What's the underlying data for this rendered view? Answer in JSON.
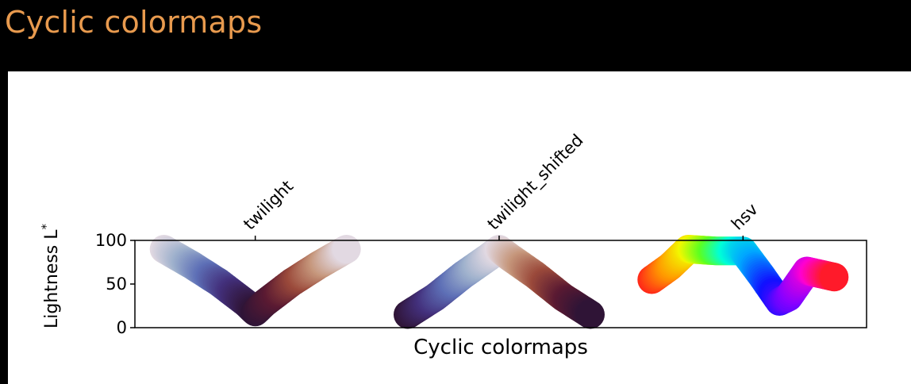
{
  "page": {
    "title": "Cyclic colormaps",
    "title_color": "#e89a4e",
    "background": "#000000"
  },
  "chart_data": {
    "type": "scatter",
    "xlabel": "Cyclic colormaps",
    "ylabel": "Lightness L",
    "ylabel_superscript": "*",
    "ylim": [
      0,
      100
    ],
    "yticks": [
      0,
      50,
      100
    ],
    "ytick_labels": [
      "0",
      "50",
      "100"
    ],
    "categories": [
      "twilight",
      "twilight_shifted",
      "hsv"
    ],
    "grid": false,
    "series": [
      {
        "name": "twilight",
        "points": [
          [
            0.0,
            90
          ],
          [
            0.15,
            72
          ],
          [
            0.3,
            52
          ],
          [
            0.45,
            28
          ],
          [
            0.5,
            18
          ],
          [
            0.55,
            28
          ],
          [
            0.7,
            52
          ],
          [
            0.85,
            72
          ],
          [
            1.0,
            90
          ]
        ],
        "colors": [
          "#e2d9e2",
          "#9db0cc",
          "#5d6fb6",
          "#43307c",
          "#2f1436",
          "#5a1a32",
          "#9b4a3b",
          "#c6977c",
          "#e2d9e2"
        ]
      },
      {
        "name": "twilight_shifted",
        "points": [
          [
            0.0,
            15
          ],
          [
            0.15,
            35
          ],
          [
            0.3,
            60
          ],
          [
            0.45,
            82
          ],
          [
            0.5,
            90
          ],
          [
            0.55,
            82
          ],
          [
            0.7,
            60
          ],
          [
            0.85,
            35
          ],
          [
            1.0,
            15
          ]
        ],
        "colors": [
          "#2f1436",
          "#43307c",
          "#5d6fb6",
          "#9db0cc",
          "#e2d9e2",
          "#c6977c",
          "#9b4a3b",
          "#5a1a32",
          "#2f1436"
        ]
      },
      {
        "name": "hsv",
        "points": [
          [
            0.0,
            55
          ],
          [
            0.1,
            70
          ],
          [
            0.2,
            90
          ],
          [
            0.35,
            88
          ],
          [
            0.5,
            88
          ],
          [
            0.6,
            60
          ],
          [
            0.7,
            30
          ],
          [
            0.75,
            35
          ],
          [
            0.85,
            65
          ],
          [
            1.0,
            58
          ]
        ],
        "colors": [
          "#ff2a18",
          "#ff9a00",
          "#f2f800",
          "#5cff20",
          "#00ffd8",
          "#00a8ff",
          "#1010ff",
          "#8a00ff",
          "#ff00d2",
          "#ff1a2a"
        ]
      }
    ]
  }
}
